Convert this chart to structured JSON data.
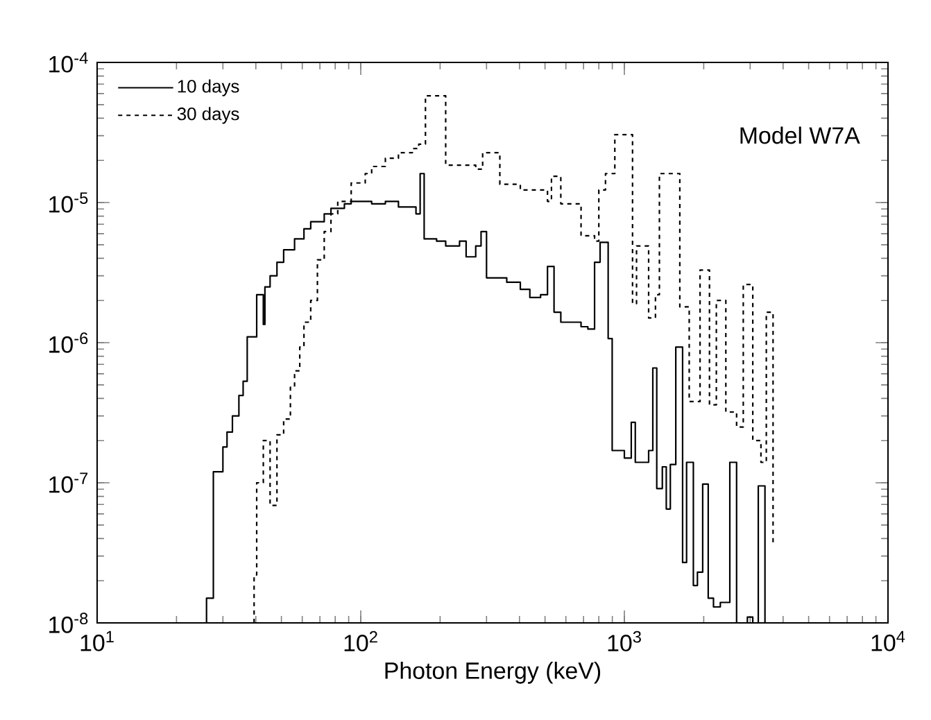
{
  "chart_data": {
    "type": "step",
    "xlabel": "Photon Energy (keV)",
    "log": "xy",
    "legend": "top left",
    "marker": "none",
    "xlim": [
      10,
      10000
    ],
    "ylim": [
      1e-08,
      0.0001
    ],
    "xticks": [
      {
        "value": 10,
        "label": "10$^{1}$"
      },
      {
        "value": 100,
        "label": "10$^{2}$"
      },
      {
        "value": 1000,
        "label": "10$^{3}$"
      },
      {
        "value": 10000,
        "label": "10$^{4}$"
      }
    ],
    "yticks": [
      {
        "value": 1e-08,
        "label": "10$^{-8}$"
      },
      {
        "value": 1e-07,
        "label": "10$^{-7}$"
      },
      {
        "value": 1e-06,
        "label": "10$^{-6}$"
      },
      {
        "value": 1e-05,
        "label": "10$^{-5}$"
      },
      {
        "value": 0.0001,
        "label": "10$^{-4}$"
      }
    ],
    "annotations": [
      "Model W7A"
    ],
    "series": [
      {
        "name": "10 days",
        "color": "#000000",
        "line_style": "solid",
        "x": [
          26.0,
          26.0,
          27.6,
          30.0,
          31.1,
          32.6,
          34.5,
          35.8,
          37.1,
          40.3,
          42.7,
          43.3,
          45.3,
          48.1,
          51.0,
          56.1,
          60.9,
          64.6,
          72.7,
          77.1,
          86.7,
          92.0,
          110,
          124,
          139,
          162,
          168,
          174,
          194,
          210,
          237,
          251,
          273,
          286,
          300,
          358,
          403,
          438,
          481,
          511,
          541,
          574,
          685,
          727,
          771,
          809,
          868,
          899,
          1000,
          1062,
          1100,
          1236,
          1282,
          1327,
          1393,
          1442,
          1494,
          1567,
          1663,
          1722,
          1827,
          1893,
          1982,
          2080,
          2178,
          2312,
          2512,
          2665,
          2928,
          3070,
          3221,
          3415
        ],
        "values": [
          1e-08,
          1.5e-08,
          1.2e-07,
          1.8e-07,
          2.3e-07,
          3e-07,
          4.2e-07,
          5.3e-07,
          1.1e-06,
          2.2e-06,
          1.35e-06,
          2.5e-06,
          3e-06,
          3.75e-06,
          4.6e-06,
          5.5e-06,
          6.5e-06,
          7.3e-06,
          8.3e-06,
          9.1e-06,
          9.8e-06,
          1.02e-05,
          9.8e-06,
          1.02e-05,
          9.3e-06,
          8.3e-06,
          1.61e-05,
          5.5e-06,
          5.3e-06,
          4.9e-06,
          5.3e-06,
          4.1e-06,
          4.9e-06,
          6.2e-06,
          2.9e-06,
          2.7e-06,
          2.4e-06,
          2.1e-06,
          2.2e-06,
          3.5e-06,
          1.65e-06,
          1.4e-06,
          1.3e-06,
          1.25e-06,
          3.75e-06,
          5.2e-06,
          1.07e-06,
          1.7e-07,
          1.5e-07,
          2.7e-07,
          1.4e-07,
          1.7e-07,
          6.6e-07,
          9.1e-08,
          1.3e-07,
          6.5e-08,
          1.35e-07,
          9.3e-07,
          2.7e-08,
          1.4e-07,
          1.85e-08,
          2.3e-08,
          9.8e-08,
          1.5e-08,
          1.3e-08,
          1.4e-08,
          1.4e-07,
          1e-08,
          1.1e-08,
          1e-08,
          9.5e-08,
          1e-08
        ]
      },
      {
        "name": "30 days",
        "color": "#000000",
        "line_style": "dashed",
        "x": [
          39.4,
          39.4,
          40.3,
          42.7,
          45.3,
          48.1,
          51.0,
          54.1,
          56.1,
          58.7,
          60.9,
          64.6,
          68.5,
          72.7,
          77.1,
          81.8,
          92.0,
          104,
          110,
          124,
          139,
          157,
          166,
          176,
          210,
          273,
          290,
          337,
          403,
          511,
          529,
          574,
          685,
          771,
          800,
          848,
          920,
          1074,
          1112,
          1236,
          1312,
          1358,
          1623,
          1762,
          1937,
          2103,
          2233,
          2426,
          2665,
          2825,
          3070,
          3297,
          3455,
          3665
        ],
        "values": [
          1e-08,
          2.2e-08,
          1e-07,
          2e-07,
          6.9e-08,
          2.2e-07,
          2.85e-07,
          4.8e-07,
          6.3e-07,
          9.3e-07,
          1.4e-06,
          2e-06,
          3.9e-06,
          6.2e-06,
          8.3e-06,
          1.02e-05,
          1.38e-05,
          1.61e-05,
          1.81e-05,
          2.07e-05,
          2.27e-05,
          2.43e-05,
          2.61e-05,
          5.78e-05,
          1.85e-05,
          1.73e-05,
          2.27e-05,
          1.35e-05,
          1.23e-05,
          1.02e-05,
          1.54e-05,
          9.8e-06,
          5.8e-06,
          5.3e-06,
          1.23e-05,
          1.61e-05,
          3.05e-05,
          1.9e-06,
          4.9e-06,
          1.5e-06,
          2.2e-06,
          1.61e-05,
          1.8e-06,
          3.8e-07,
          3.3e-06,
          3.6e-07,
          2e-06,
          3.2e-07,
          2.5e-07,
          2.6e-06,
          2e-07,
          1.4e-07,
          1.65e-06,
          3.7e-08
        ]
      }
    ]
  }
}
